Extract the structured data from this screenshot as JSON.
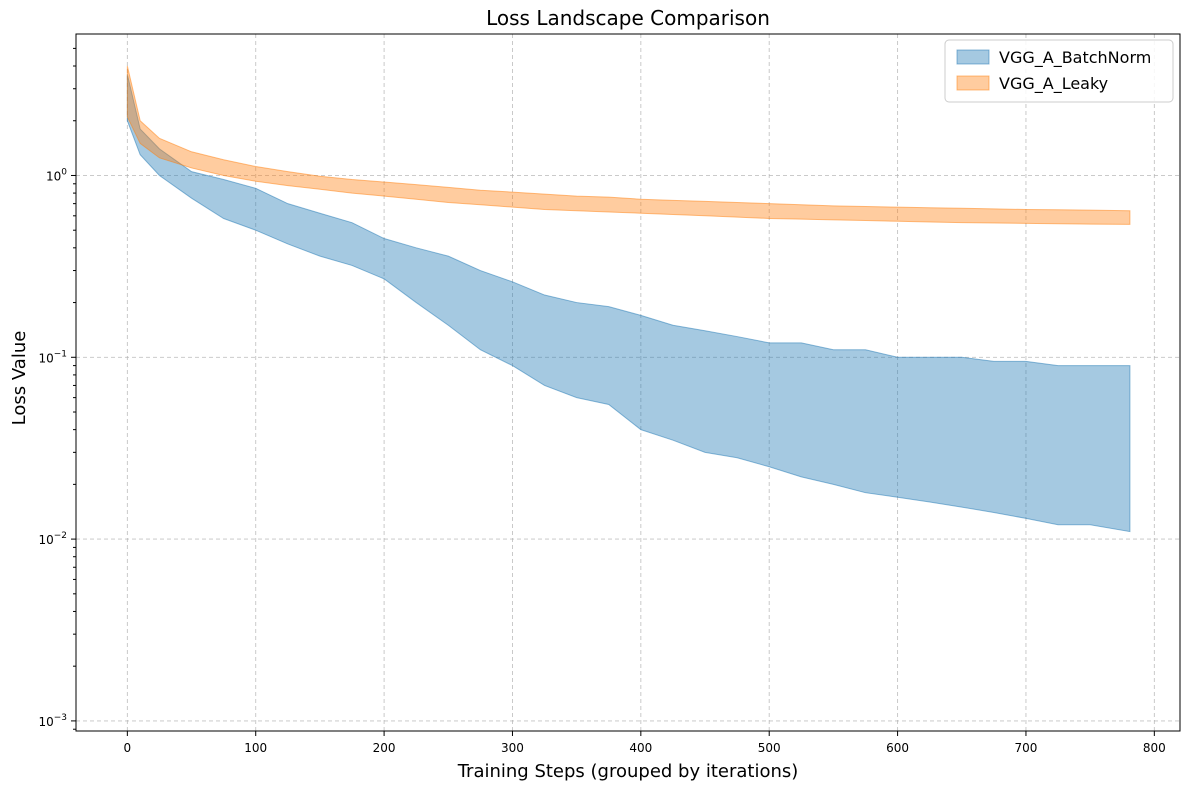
{
  "chart_data": {
    "type": "area",
    "title": "Loss Landscape Comparison",
    "xlabel": "Training Steps (grouped by iterations)",
    "ylabel": "Loss Value",
    "xlim": [
      -40,
      820
    ],
    "ylim": [
      0.00088,
      6
    ],
    "yscale": "log",
    "grid": true,
    "legend_position": "top-right",
    "x_ticks": [
      0,
      100,
      200,
      300,
      400,
      500,
      600,
      700,
      800
    ],
    "x_tick_labels": [
      "0",
      "100",
      "200",
      "300",
      "400",
      "500",
      "600",
      "700",
      "800"
    ],
    "y_ticks": [
      0.001,
      0.01,
      0.1,
      1
    ],
    "y_tick_labels": [
      {
        "base": "10",
        "exp": "−3"
      },
      {
        "base": "10",
        "exp": "−2"
      },
      {
        "base": "10",
        "exp": "−1"
      },
      {
        "base": "10",
        "exp": "0"
      }
    ],
    "series": [
      {
        "name": "VGG_A_BatchNorm",
        "fill": "#1f77b4",
        "points": [
          {
            "x": 0,
            "lo": 2.0,
            "hi": 3.6
          },
          {
            "x": 10,
            "lo": 1.3,
            "hi": 1.8
          },
          {
            "x": 25,
            "lo": 1.0,
            "hi": 1.4
          },
          {
            "x": 50,
            "lo": 0.75,
            "hi": 1.05
          },
          {
            "x": 75,
            "lo": 0.58,
            "hi": 0.95
          },
          {
            "x": 100,
            "lo": 0.5,
            "hi": 0.85
          },
          {
            "x": 125,
            "lo": 0.42,
            "hi": 0.7
          },
          {
            "x": 150,
            "lo": 0.36,
            "hi": 0.62
          },
          {
            "x": 175,
            "lo": 0.32,
            "hi": 0.55
          },
          {
            "x": 200,
            "lo": 0.27,
            "hi": 0.45
          },
          {
            "x": 225,
            "lo": 0.2,
            "hi": 0.4
          },
          {
            "x": 250,
            "lo": 0.15,
            "hi": 0.36
          },
          {
            "x": 275,
            "lo": 0.11,
            "hi": 0.3
          },
          {
            "x": 300,
            "lo": 0.09,
            "hi": 0.26
          },
          {
            "x": 325,
            "lo": 0.07,
            "hi": 0.22
          },
          {
            "x": 350,
            "lo": 0.06,
            "hi": 0.2
          },
          {
            "x": 375,
            "lo": 0.055,
            "hi": 0.19
          },
          {
            "x": 400,
            "lo": 0.04,
            "hi": 0.17
          },
          {
            "x": 425,
            "lo": 0.035,
            "hi": 0.15
          },
          {
            "x": 450,
            "lo": 0.03,
            "hi": 0.14
          },
          {
            "x": 475,
            "lo": 0.028,
            "hi": 0.13
          },
          {
            "x": 500,
            "lo": 0.025,
            "hi": 0.12
          },
          {
            "x": 525,
            "lo": 0.022,
            "hi": 0.12
          },
          {
            "x": 550,
            "lo": 0.02,
            "hi": 0.11
          },
          {
            "x": 575,
            "lo": 0.018,
            "hi": 0.11
          },
          {
            "x": 600,
            "lo": 0.017,
            "hi": 0.1
          },
          {
            "x": 625,
            "lo": 0.016,
            "hi": 0.1
          },
          {
            "x": 650,
            "lo": 0.015,
            "hi": 0.1
          },
          {
            "x": 675,
            "lo": 0.014,
            "hi": 0.095
          },
          {
            "x": 700,
            "lo": 0.013,
            "hi": 0.095
          },
          {
            "x": 725,
            "lo": 0.012,
            "hi": 0.09
          },
          {
            "x": 750,
            "lo": 0.012,
            "hi": 0.09
          },
          {
            "x": 781,
            "lo": 0.011,
            "hi": 0.09
          }
        ]
      },
      {
        "name": "VGG_A_Leaky",
        "fill": "#ff7f0e",
        "points": [
          {
            "x": 0,
            "lo": 2.1,
            "hi": 4.0
          },
          {
            "x": 10,
            "lo": 1.5,
            "hi": 2.0
          },
          {
            "x": 25,
            "lo": 1.25,
            "hi": 1.6
          },
          {
            "x": 50,
            "lo": 1.1,
            "hi": 1.35
          },
          {
            "x": 75,
            "lo": 1.0,
            "hi": 1.22
          },
          {
            "x": 100,
            "lo": 0.93,
            "hi": 1.12
          },
          {
            "x": 125,
            "lo": 0.88,
            "hi": 1.05
          },
          {
            "x": 150,
            "lo": 0.84,
            "hi": 0.99
          },
          {
            "x": 175,
            "lo": 0.8,
            "hi": 0.95
          },
          {
            "x": 200,
            "lo": 0.77,
            "hi": 0.92
          },
          {
            "x": 225,
            "lo": 0.74,
            "hi": 0.89
          },
          {
            "x": 250,
            "lo": 0.71,
            "hi": 0.86
          },
          {
            "x": 275,
            "lo": 0.69,
            "hi": 0.83
          },
          {
            "x": 300,
            "lo": 0.67,
            "hi": 0.81
          },
          {
            "x": 325,
            "lo": 0.65,
            "hi": 0.79
          },
          {
            "x": 350,
            "lo": 0.64,
            "hi": 0.77
          },
          {
            "x": 375,
            "lo": 0.63,
            "hi": 0.76
          },
          {
            "x": 400,
            "lo": 0.62,
            "hi": 0.74
          },
          {
            "x": 425,
            "lo": 0.61,
            "hi": 0.73
          },
          {
            "x": 450,
            "lo": 0.6,
            "hi": 0.72
          },
          {
            "x": 475,
            "lo": 0.59,
            "hi": 0.71
          },
          {
            "x": 500,
            "lo": 0.58,
            "hi": 0.7
          },
          {
            "x": 525,
            "lo": 0.575,
            "hi": 0.69
          },
          {
            "x": 550,
            "lo": 0.57,
            "hi": 0.68
          },
          {
            "x": 575,
            "lo": 0.565,
            "hi": 0.675
          },
          {
            "x": 600,
            "lo": 0.56,
            "hi": 0.67
          },
          {
            "x": 625,
            "lo": 0.555,
            "hi": 0.665
          },
          {
            "x": 650,
            "lo": 0.55,
            "hi": 0.66
          },
          {
            "x": 675,
            "lo": 0.548,
            "hi": 0.655
          },
          {
            "x": 700,
            "lo": 0.545,
            "hi": 0.65
          },
          {
            "x": 725,
            "lo": 0.543,
            "hi": 0.648
          },
          {
            "x": 750,
            "lo": 0.54,
            "hi": 0.645
          },
          {
            "x": 781,
            "lo": 0.538,
            "hi": 0.64
          }
        ]
      }
    ]
  }
}
